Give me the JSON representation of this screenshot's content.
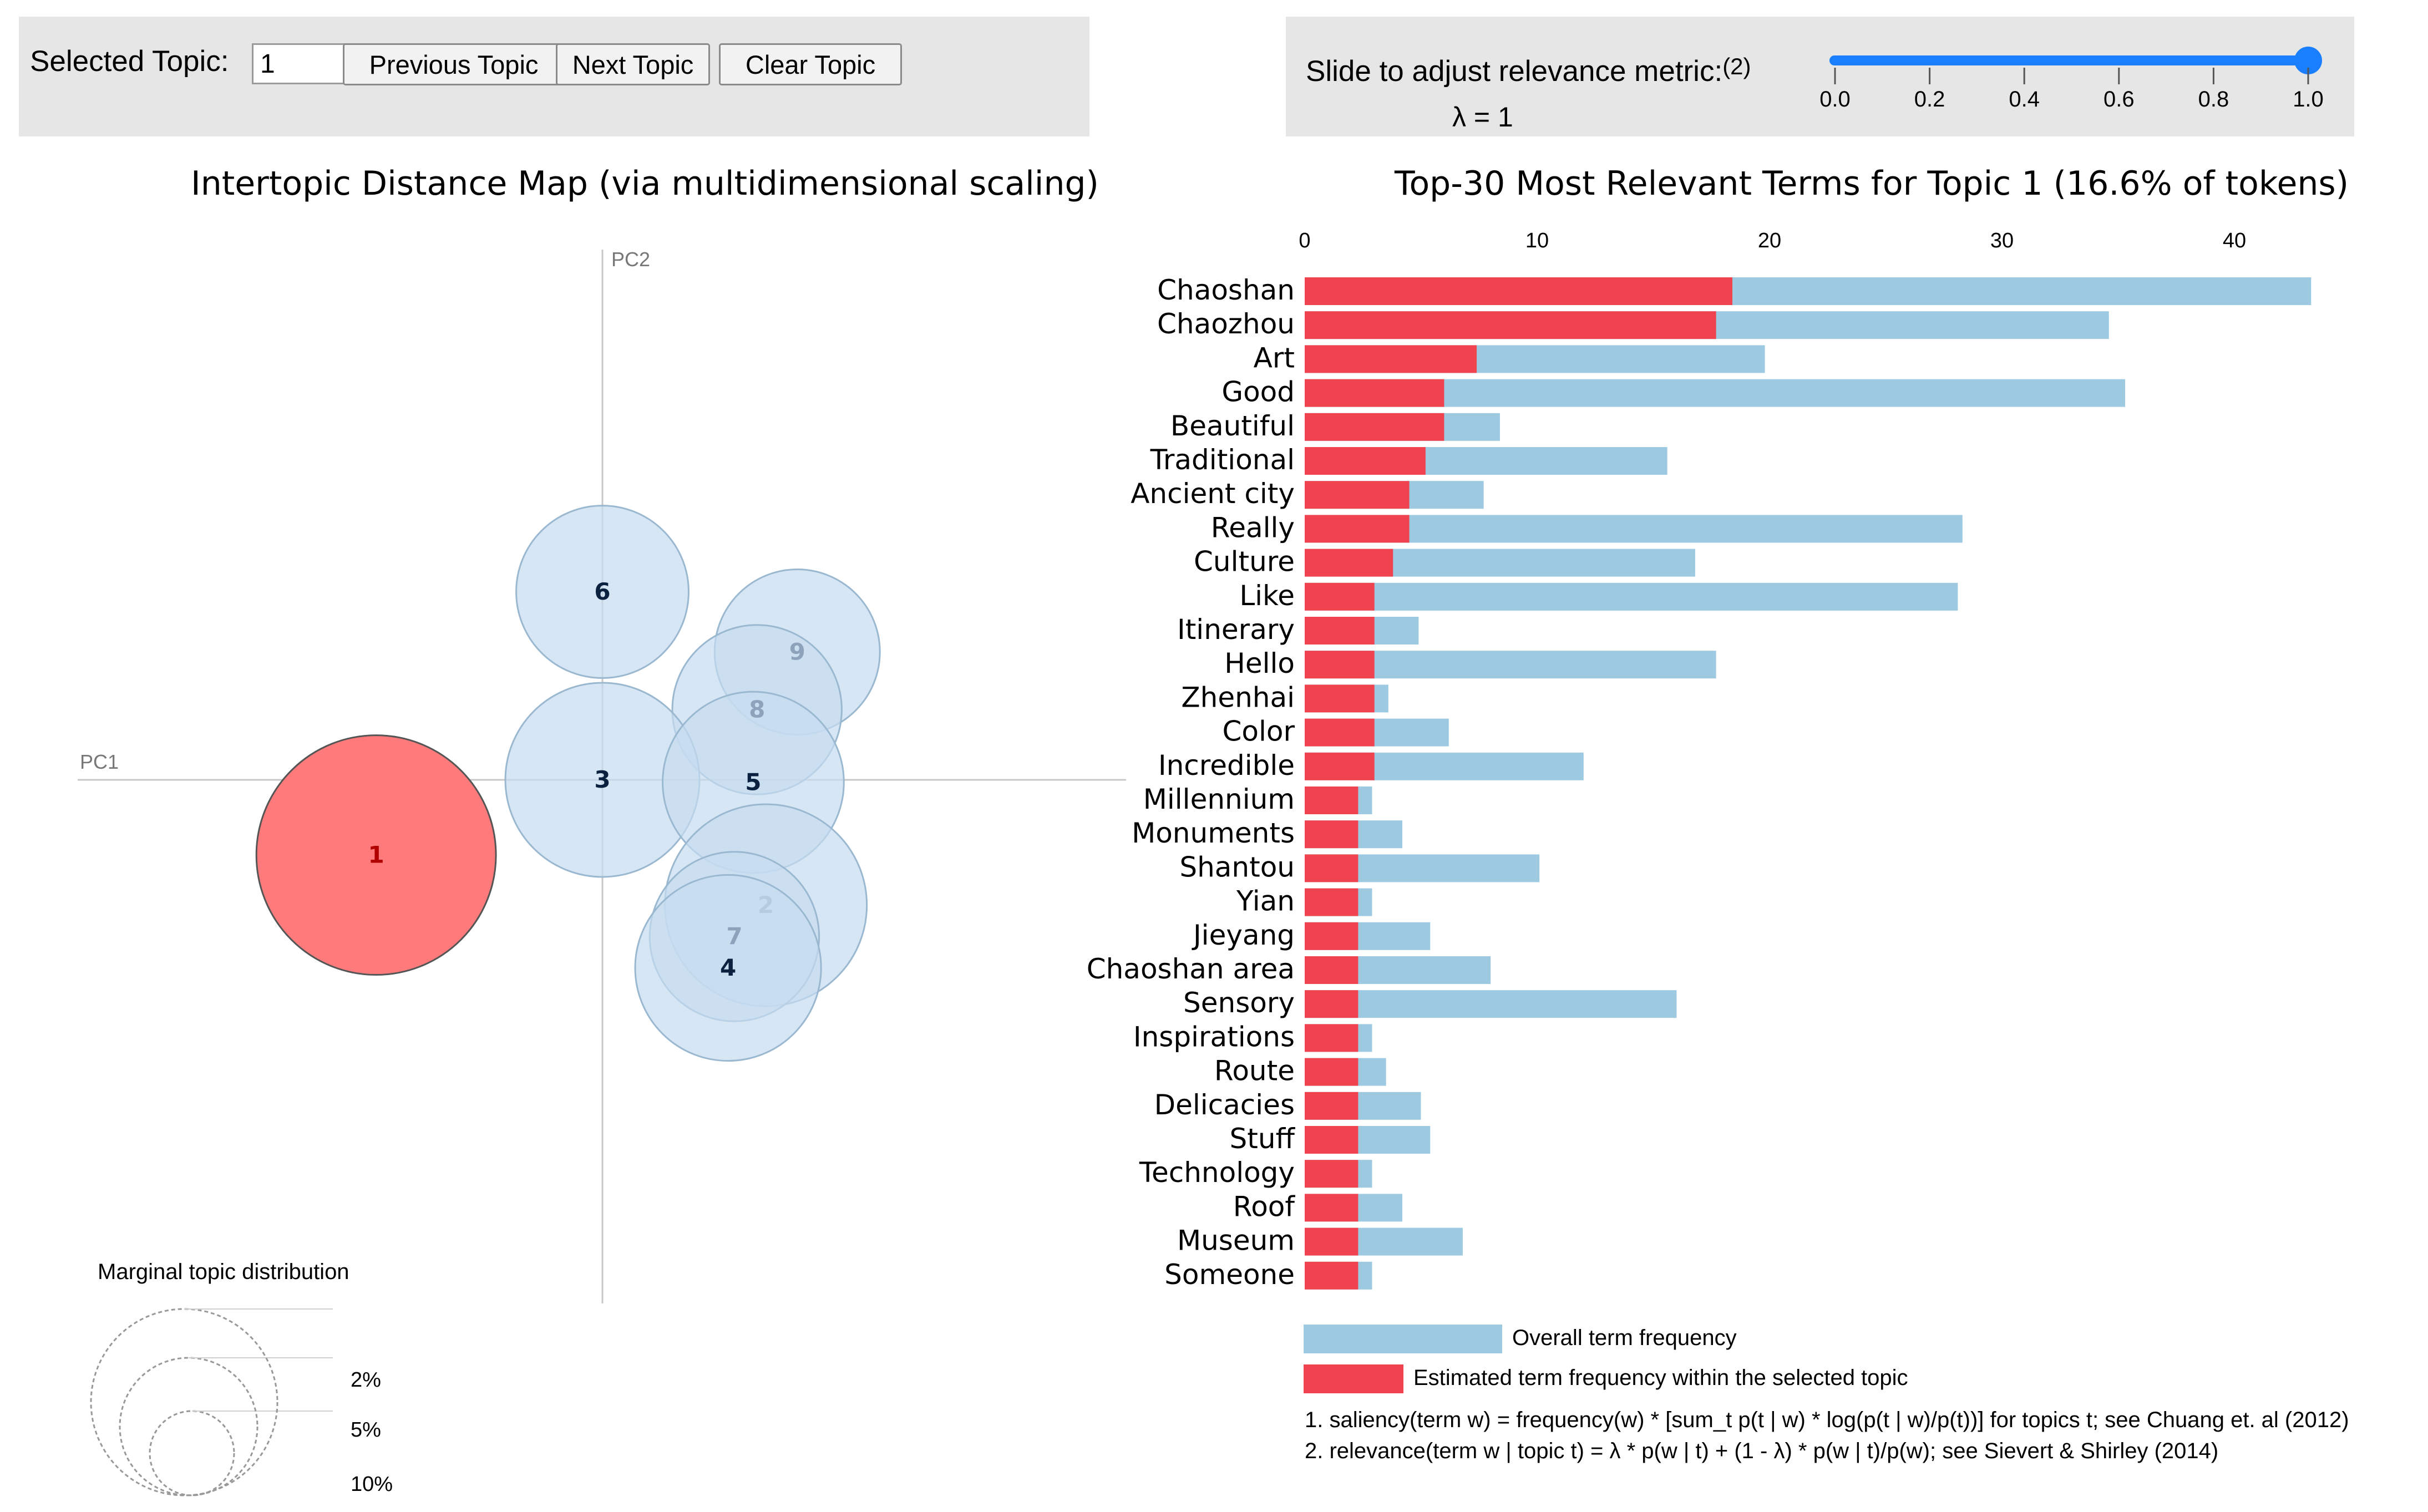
{
  "controls": {
    "selected_topic_label": "Selected Topic:",
    "selected_topic_value": "1",
    "prev_label": "Previous Topic",
    "next_label": "Next Topic",
    "clear_label": "Clear Topic"
  },
  "relevance": {
    "label": "Slide to adjust relevance metric:",
    "footnote_ref": "(2)",
    "lambda_text": "λ = 1",
    "lambda_value": 1.0,
    "ticks": [
      "0.0",
      "0.2",
      "0.4",
      "0.6",
      "0.8",
      "1.0"
    ]
  },
  "colors": {
    "bubble_fill": "#c6dbef",
    "bubble_stroke": "#9ab8d0",
    "selected_fill": "#ff7b7b",
    "overall_bar": "#9ecae1",
    "topic_bar": "#ef434f",
    "slider": "#1a7fff"
  },
  "chart_data": [
    {
      "type": "scatter",
      "title": "Intertopic Distance Map (via multidimensional scaling)",
      "xlabel": "PC1",
      "ylabel": "PC2",
      "selected_topic": 1,
      "topics": [
        {
          "id": "1",
          "pc1": -0.18,
          "pc2": -0.06,
          "size": 16.6
        },
        {
          "id": "2",
          "pc1": 0.13,
          "pc2": -0.1,
          "size": 11.8
        },
        {
          "id": "3",
          "pc1": 0.0,
          "pc2": 0.0,
          "size": 10.9
        },
        {
          "id": "4",
          "pc1": 0.1,
          "pc2": -0.15,
          "size": 10.0
        },
        {
          "id": "5",
          "pc1": 0.12,
          "pc2": -0.002,
          "size": 9.5
        },
        {
          "id": "6",
          "pc1": 0.0,
          "pc2": 0.15,
          "size": 8.6
        },
        {
          "id": "7",
          "pc1": 0.105,
          "pc2": -0.125,
          "size": 8.3
        },
        {
          "id": "8",
          "pc1": 0.123,
          "pc2": 0.056,
          "size": 8.3
        },
        {
          "id": "9",
          "pc1": 0.155,
          "pc2": 0.102,
          "size": 7.9
        }
      ],
      "marginal_legend": {
        "title": "Marginal topic distribution",
        "levels": [
          "2%",
          "5%",
          "10%"
        ]
      }
    },
    {
      "type": "bar",
      "orientation": "horizontal",
      "title": "Top-30 Most Relevant Terms for Topic 1 (16.6% of tokens)",
      "xlim": [
        0,
        44
      ],
      "xticks": [
        "0",
        "10",
        "20",
        "30",
        "40"
      ],
      "categories": [
        "Chaoshan",
        "Chaozhou",
        "Art",
        "Good",
        "Beautiful",
        "Traditional",
        "Ancient city",
        "Really",
        "Culture",
        "Like",
        "Itinerary",
        "Hello",
        "Zhenhai",
        "Color",
        "Incredible",
        "Millennium",
        "Monuments",
        "Shantou",
        "Yian",
        "Jieyang",
        "Chaoshan area",
        "Sensory",
        "Inspirations",
        "Route",
        "Delicacies",
        "Stuff",
        "Technology",
        "Roof",
        "Museum",
        "Someone"
      ],
      "series": [
        {
          "name": "Overall term frequency",
          "values": [
            43.3,
            34.6,
            19.8,
            35.3,
            8.4,
            15.6,
            7.7,
            28.3,
            16.8,
            28.1,
            4.9,
            17.7,
            3.6,
            6.2,
            12.0,
            2.9,
            4.2,
            10.1,
            2.9,
            5.4,
            8.0,
            16.0,
            2.9,
            3.5,
            5.0,
            5.4,
            2.9,
            4.2,
            6.8,
            2.9
          ]
        },
        {
          "name": "Estimated term frequency within the selected topic",
          "values": [
            18.4,
            17.7,
            7.4,
            6.0,
            6.0,
            5.2,
            4.5,
            4.5,
            3.8,
            3.0,
            3.0,
            3.0,
            3.0,
            3.0,
            3.0,
            2.3,
            2.3,
            2.3,
            2.3,
            2.3,
            2.3,
            2.3,
            2.3,
            2.3,
            2.3,
            2.3,
            2.3,
            2.3,
            2.3,
            2.3
          ]
        }
      ]
    }
  ],
  "legend": {
    "overall": "Overall term frequency",
    "estimated": "Estimated term frequency within the selected topic"
  },
  "footnotes": {
    "line1": "1. saliency(term w) = frequency(w) * [sum_t p(t | w) * log(p(t | w)/p(t))] for topics t; see Chuang et. al (2012)",
    "line2": "2. relevance(term w | topic t) = λ * p(w | t) + (1 - λ) * p(w | t)/p(w); see Sievert & Shirley (2014)"
  }
}
